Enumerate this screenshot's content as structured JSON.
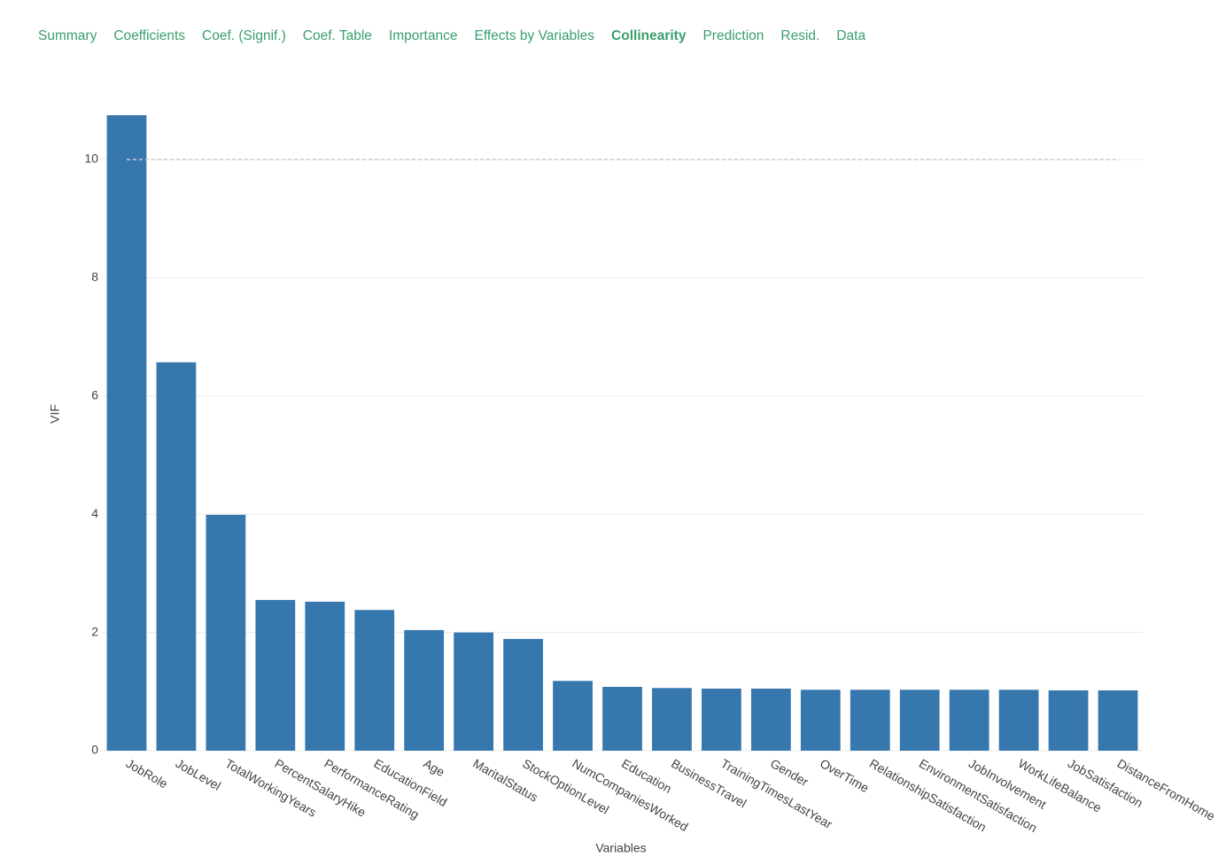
{
  "tabs": [
    {
      "label": "Summary",
      "active": false
    },
    {
      "label": "Coefficients",
      "active": false
    },
    {
      "label": "Coef. (Signif.)",
      "active": false
    },
    {
      "label": "Coef. Table",
      "active": false
    },
    {
      "label": "Importance",
      "active": false
    },
    {
      "label": "Effects by Variables",
      "active": false
    },
    {
      "label": "Collinearity",
      "active": true
    },
    {
      "label": "Prediction",
      "active": false
    },
    {
      "label": "Resid.",
      "active": false
    },
    {
      "label": "Data",
      "active": false
    }
  ],
  "chart_data": {
    "type": "bar",
    "x_label": "Variables",
    "y_label": "VIF",
    "color": "#3677ad",
    "categories": [
      "JobRole",
      "JobLevel",
      "TotalWorkingYears",
      "PercentSalaryHike",
      "PerformanceRating",
      "EducationField",
      "Age",
      "MaritalStatus",
      "StockOptionLevel",
      "NumCompaniesWorked",
      "Education",
      "BusinessTravel",
      "TrainingTimesLastYear",
      "Gender",
      "OverTime",
      "RelationshipSatisfaction",
      "EnvironmentSatisfaction",
      "JobInvolvement",
      "WorkLifeBalance",
      "JobSatisfaction",
      "DistanceFromHome"
    ],
    "values": [
      10.75,
      6.57,
      3.99,
      2.55,
      2.52,
      2.38,
      2.04,
      2.0,
      1.89,
      1.18,
      1.08,
      1.06,
      1.05,
      1.05,
      1.03,
      1.03,
      1.03,
      1.03,
      1.03,
      1.02,
      1.02
    ],
    "ylim": [
      0,
      10.9
    ],
    "yticks": [
      0,
      2,
      4,
      6,
      8,
      10
    ],
    "grid": true,
    "reference_line": 10
  }
}
